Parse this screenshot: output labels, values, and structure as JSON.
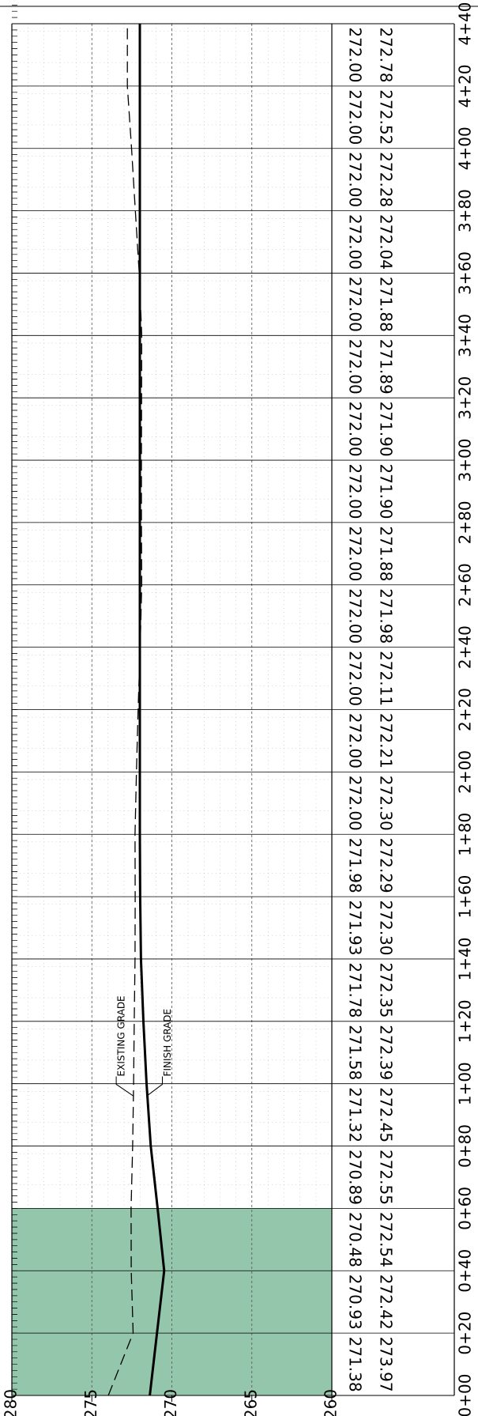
{
  "chart_data": {
    "type": "line",
    "categories": [
      "0+00",
      "0+20",
      "0+40",
      "0+60",
      "0+80",
      "1+00",
      "1+20",
      "1+40",
      "1+60",
      "1+80",
      "2+00",
      "2+20",
      "2+40",
      "2+60",
      "2+80",
      "3+00",
      "3+20",
      "3+40",
      "3+60",
      "3+80",
      "4+00",
      "4+20",
      "4+40"
    ],
    "series": [
      {
        "name": "EXISTING GRADE",
        "color": "#000000",
        "dash": true,
        "values": [
          273.97,
          272.42,
          272.54,
          272.55,
          272.45,
          272.39,
          272.35,
          272.3,
          272.29,
          272.3,
          272.21,
          272.11,
          271.98,
          271.88,
          271.9,
          271.9,
          271.89,
          271.88,
          272.04,
          272.28,
          272.52,
          272.78,
          272.78
        ],
        "value_labels": [
          "273.97",
          "272.42",
          "272.54",
          "272.55",
          "272.45",
          "272.39",
          "272.35",
          "272.30",
          "272.29",
          "272.30",
          "272.21",
          "272.11",
          "271.98",
          "271.88",
          "271.90",
          "271.90",
          "271.89",
          "271.88",
          "272.04",
          "272.28",
          "272.52",
          "272.78",
          null
        ]
      },
      {
        "name": "FINISH GRADE",
        "color": "#000000",
        "dash": false,
        "values": [
          271.38,
          270.93,
          270.48,
          270.89,
          271.32,
          271.58,
          271.78,
          271.93,
          271.98,
          272.0,
          272.0,
          272.0,
          272.0,
          272.0,
          272.0,
          272.0,
          272.0,
          272.0,
          272.0,
          272.0,
          272.0,
          272.0,
          272.0
        ],
        "value_labels": [
          "271.38",
          "270.93",
          "270.48",
          "270.89",
          "271.32",
          "271.58",
          "271.78",
          "271.93",
          "271.98",
          "272.00",
          "272.00",
          "272.00",
          "272.00",
          "272.00",
          "272.00",
          "272.00",
          "272.00",
          "272.00",
          "272.00",
          "272.00",
          "272.00",
          "272.00",
          null
        ]
      }
    ],
    "ylim": [
      260,
      280
    ],
    "yticks": [
      260,
      265,
      270,
      275,
      280
    ],
    "grid": true
  }
}
